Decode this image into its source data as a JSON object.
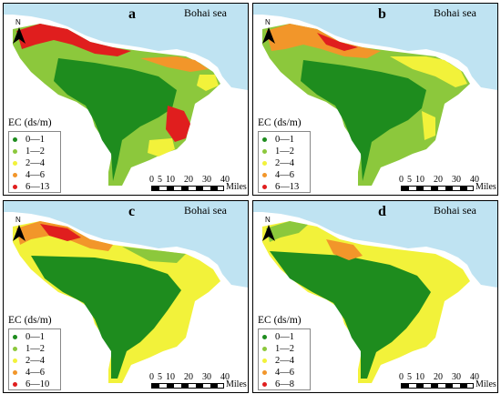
{
  "sea_label": "Bohai sea",
  "north_label": "N",
  "legend_title": "EC (ds/m)",
  "scale_unit": "Miles",
  "scale_ticks": [
    "0",
    "5",
    "10",
    "20",
    "30",
    "40"
  ],
  "colors": {
    "class1": "#1e8c1e",
    "class2": "#8cc83c",
    "class3": "#f2f23a",
    "class4": "#f2962a",
    "class5": "#e01e1e",
    "sea": "#bfe3f2",
    "land_out": "#ffffff"
  },
  "panels": [
    {
      "id": "a",
      "label": "a",
      "classes": [
        "0—1",
        "1—2",
        "2—4",
        "4—6",
        "6—13"
      ]
    },
    {
      "id": "b",
      "label": "b",
      "classes": [
        "0—1",
        "1—2",
        "2—4",
        "4—6",
        "6—13"
      ]
    },
    {
      "id": "c",
      "label": "c",
      "classes": [
        "0—1",
        "1—2",
        "2—4",
        "4—6",
        "6—10"
      ]
    },
    {
      "id": "d",
      "label": "d",
      "classes": [
        "0—1",
        "1—2",
        "2—4",
        "4—6",
        "6—8"
      ]
    }
  ]
}
